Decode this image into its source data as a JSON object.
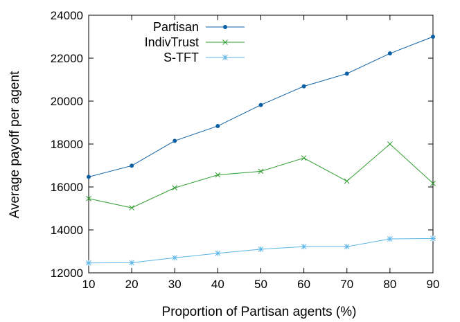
{
  "chart_data": {
    "type": "line",
    "xlabel": "Proportion of Partisan agents (%)",
    "ylabel": "Average payoff per agent",
    "x": [
      10,
      20,
      30,
      40,
      50,
      60,
      70,
      80,
      90
    ],
    "xlim": [
      10,
      90
    ],
    "ylim": [
      12000,
      24000
    ],
    "xticks": [
      10,
      20,
      30,
      40,
      50,
      60,
      70,
      80,
      90
    ],
    "yticks": [
      12000,
      14000,
      16000,
      18000,
      20000,
      22000,
      24000
    ],
    "legend_position": "top-left",
    "grid": false,
    "series": [
      {
        "name": "Partisan",
        "marker": "dot",
        "color": "#0b5fa5",
        "values": [
          16470,
          16990,
          18150,
          18840,
          19820,
          20690,
          21280,
          22220,
          23000
        ]
      },
      {
        "name": "IndivTrust",
        "marker": "x",
        "color": "#2e9c2e",
        "values": [
          15460,
          15030,
          15960,
          16560,
          16730,
          17350,
          16270,
          18000,
          16170
        ]
      },
      {
        "name": "S-TFT",
        "marker": "star",
        "color": "#5ab4e6",
        "values": [
          12460,
          12470,
          12700,
          12910,
          13100,
          13220,
          13220,
          13580,
          13600
        ]
      }
    ]
  }
}
